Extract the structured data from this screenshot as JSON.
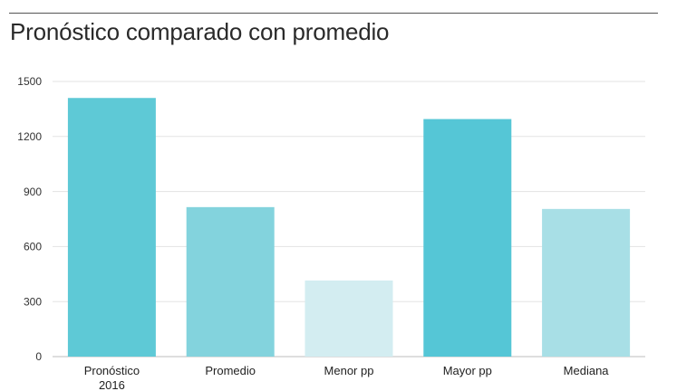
{
  "chart_data": {
    "type": "bar",
    "title": "Pronóstico comparado con promedio",
    "categories": [
      [
        "Pronóstico",
        "2016"
      ],
      [
        "Promedio"
      ],
      [
        "Menor pp"
      ],
      [
        "Mayor pp"
      ],
      [
        "Mediana"
      ]
    ],
    "values": [
      1410,
      815,
      415,
      1295,
      805
    ],
    "colors": [
      "#5ec9d6",
      "#83d3dd",
      "#d3edf1",
      "#55c6d6",
      "#a8dfe6"
    ],
    "ylim": [
      0,
      1500
    ],
    "yticks": [
      0,
      300,
      600,
      900,
      1200,
      1500
    ],
    "ytick_labels": [
      "0",
      "300",
      "600",
      "900",
      "1200",
      "1500"
    ],
    "grid": true,
    "xlabel": "",
    "ylabel": ""
  }
}
